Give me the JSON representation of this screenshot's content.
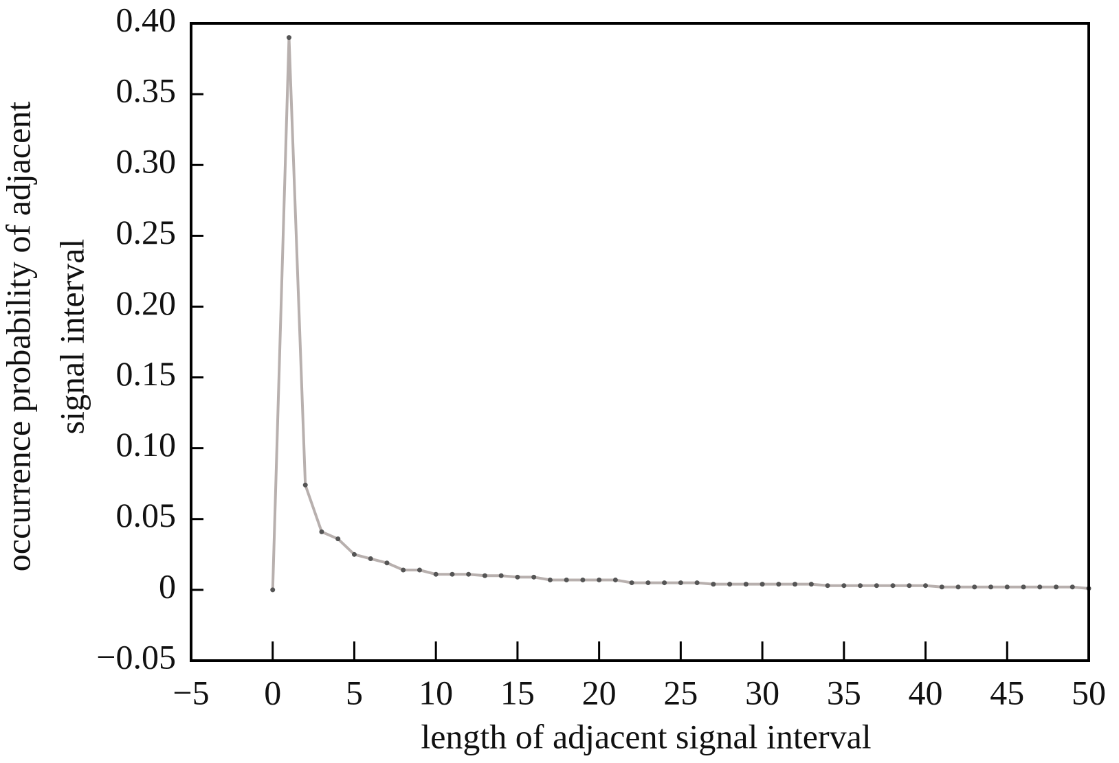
{
  "chart_data": {
    "type": "line",
    "xlabel": "length of adjacent signal interval",
    "ylabel": [
      "occurrence probability of adjacent",
      "signal interval"
    ],
    "xlim": [
      -5,
      50
    ],
    "ylim": [
      -0.05,
      0.4
    ],
    "xticks": [
      {
        "value": -5,
        "label": "−5"
      },
      0,
      5,
      10,
      15,
      20,
      25,
      30,
      35,
      40,
      45,
      50
    ],
    "yticks": [
      {
        "value": -0.05,
        "label": "−0.05"
      },
      0,
      0.05,
      {
        "value": 0.1,
        "label": "0.10"
      },
      0.15,
      {
        "value": 0.2,
        "label": "0.20"
      },
      0.25,
      {
        "value": 0.3,
        "label": "0.30"
      },
      0.35,
      {
        "value": 0.4,
        "label": "0.40"
      }
    ],
    "series": [
      {
        "color": "#b8b0ae",
        "marker_color": "#555555",
        "x": [
          0,
          1,
          2,
          3,
          4,
          5,
          6,
          7,
          8,
          9,
          10,
          11,
          12,
          13,
          14,
          15,
          16,
          17,
          18,
          19,
          20,
          21,
          22,
          23,
          24,
          25,
          26,
          27,
          28,
          29,
          30,
          31,
          32,
          33,
          34,
          35,
          36,
          37,
          38,
          39,
          40,
          41,
          42,
          43,
          44,
          45,
          46,
          47,
          48,
          49,
          50
        ],
        "values": [
          0,
          0.39,
          0.074,
          0.041,
          0.036,
          0.025,
          0.022,
          0.019,
          0.014,
          0.014,
          0.011,
          0.011,
          0.011,
          0.01,
          0.01,
          0.009,
          0.009,
          0.007,
          0.007,
          0.007,
          0.007,
          0.007,
          0.005,
          0.005,
          0.005,
          0.005,
          0.005,
          0.004,
          0.004,
          0.004,
          0.004,
          0.004,
          0.004,
          0.004,
          0.003,
          0.003,
          0.003,
          0.003,
          0.003,
          0.003,
          0.003,
          0.002,
          0.002,
          0.002,
          0.002,
          0.002,
          0.002,
          0.002,
          0.002,
          0.002,
          0.001
        ]
      }
    ]
  }
}
